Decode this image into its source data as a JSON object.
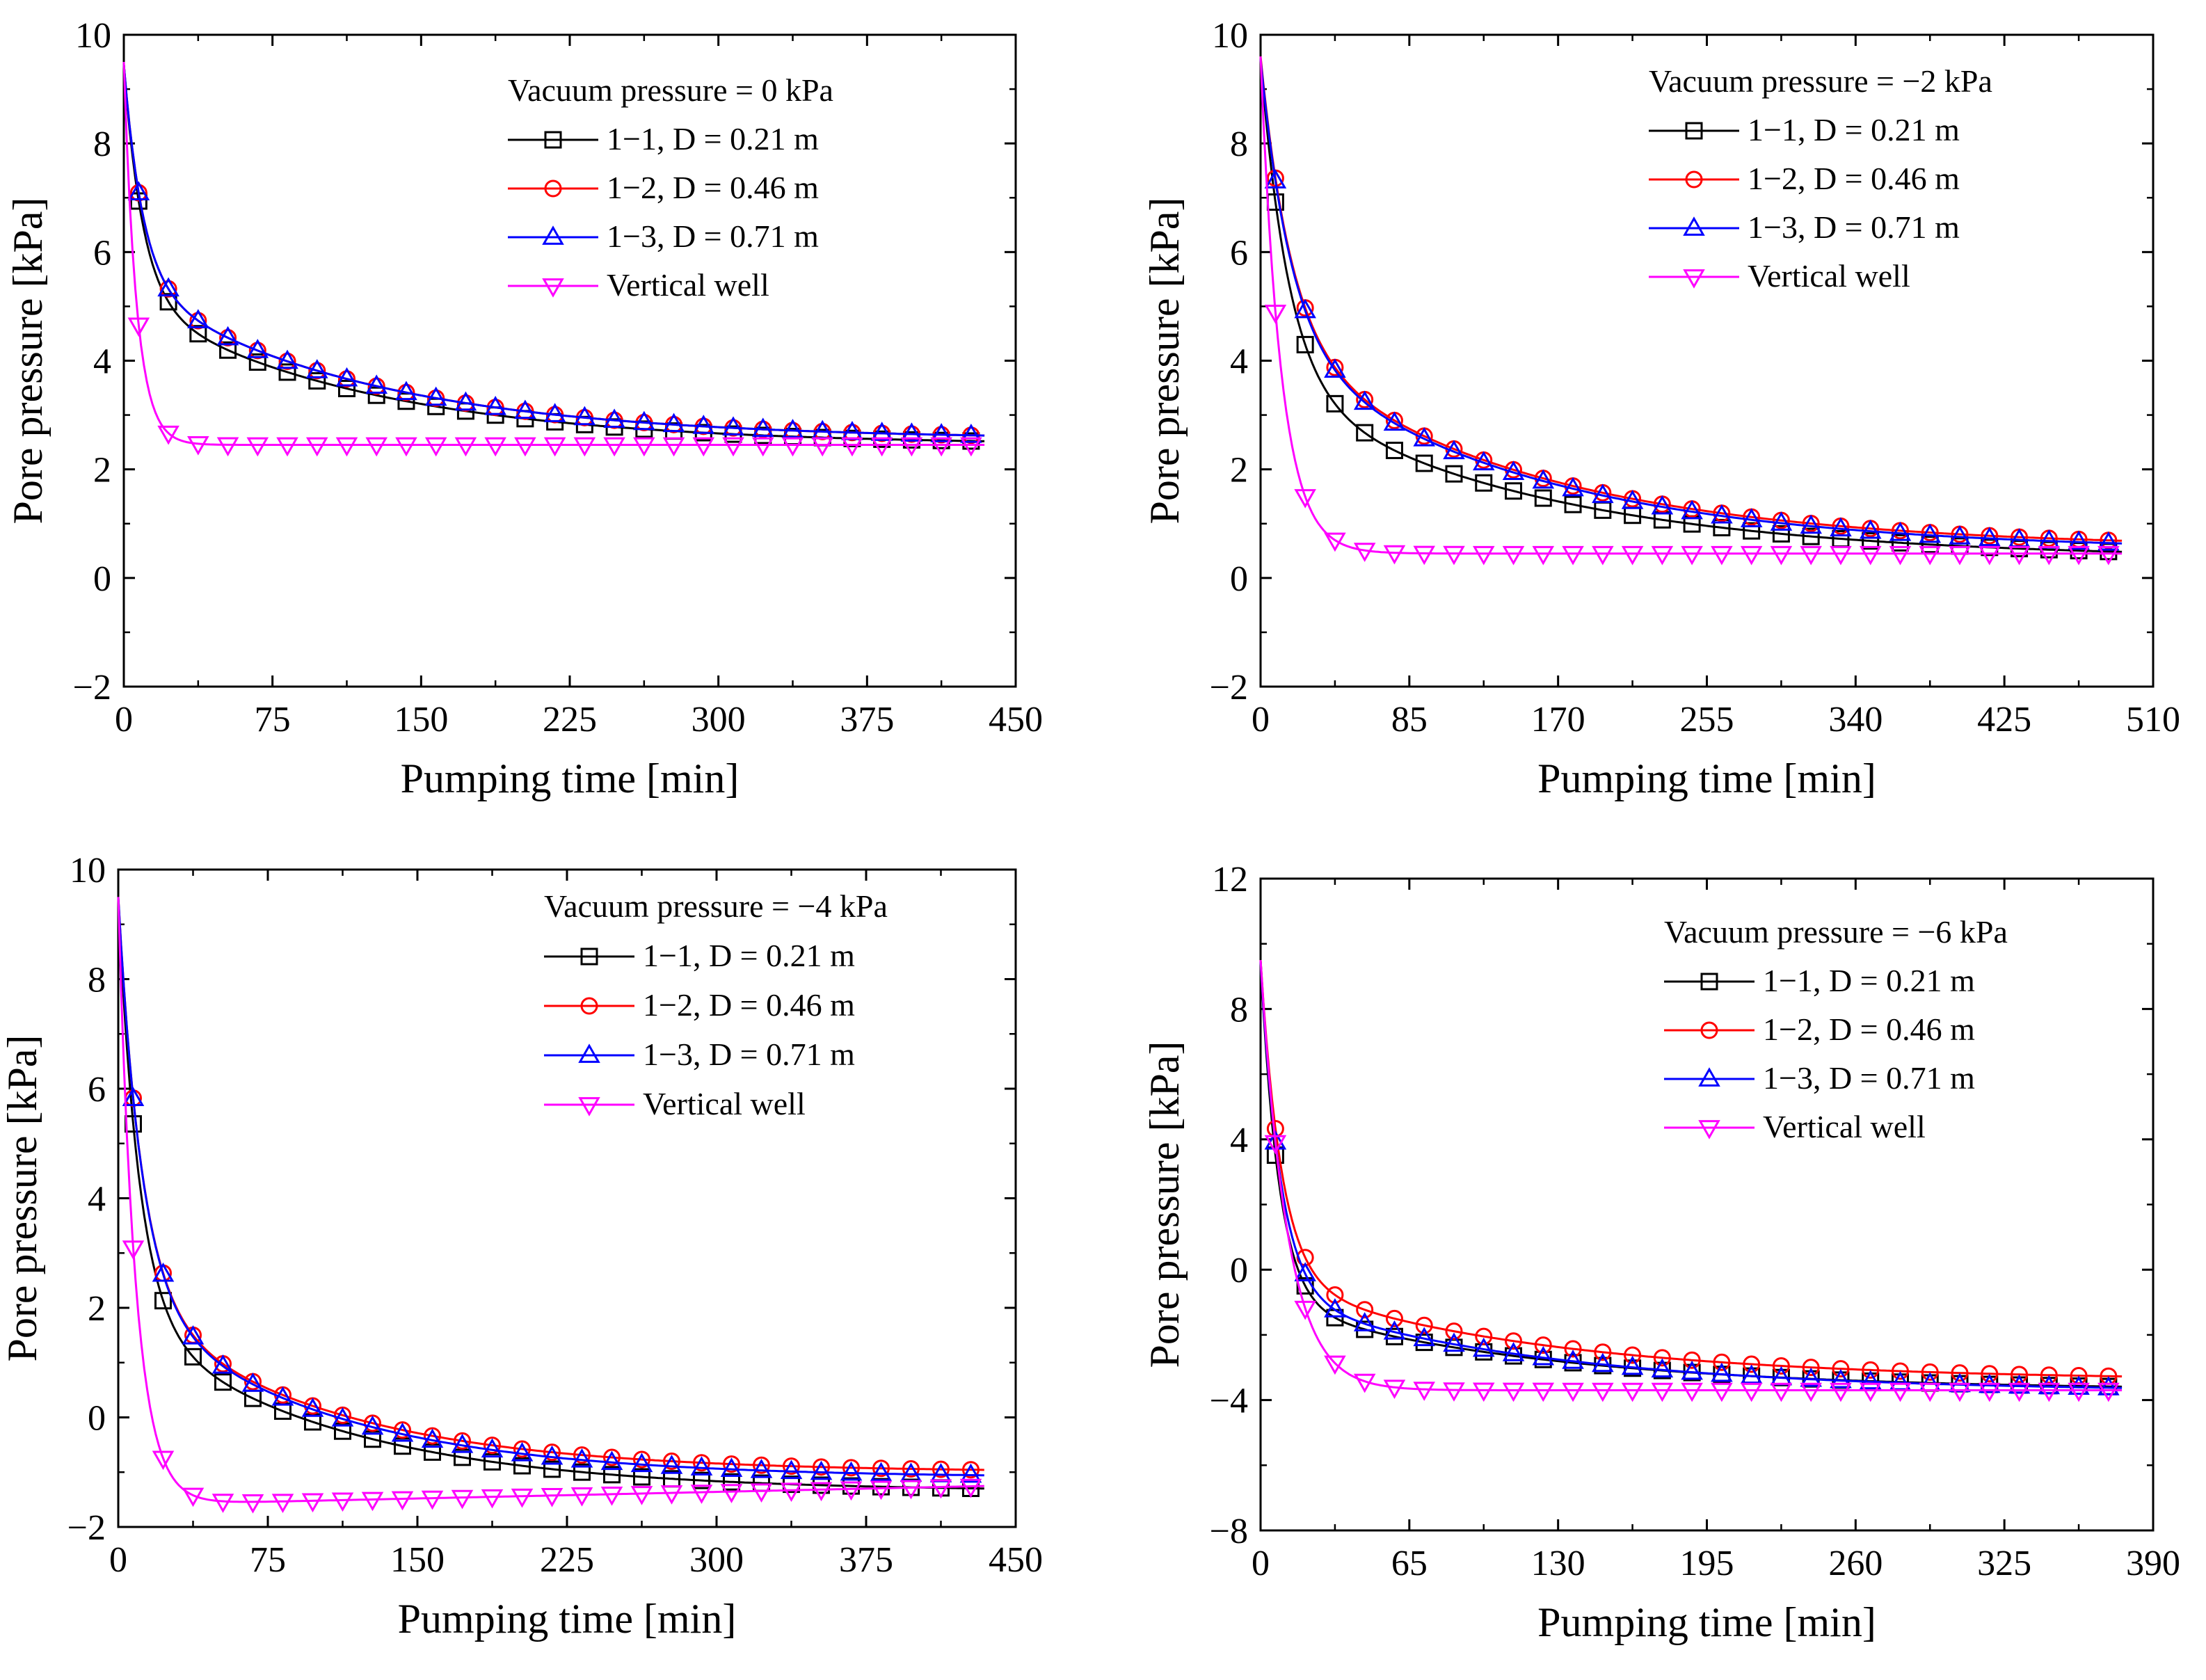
{
  "chart_data": [
    {
      "type": "line",
      "title": "Vacuum pressure = 0 kPa",
      "xlabel": "Pumping time [min]",
      "ylabel": "Pore pressure [kPa]",
      "xlim": [
        0,
        450
      ],
      "ylim": [
        -2,
        10
      ],
      "xticks": [
        0,
        75,
        150,
        225,
        300,
        375,
        450
      ],
      "yticks": [
        -2,
        0,
        2,
        4,
        6,
        8,
        10
      ],
      "xtick_labels": [
        "0",
        "75",
        "150",
        "225",
        "300",
        "375",
        "450"
      ],
      "ytick_labels": [
        "−2",
        "0",
        "2",
        "4",
        "6",
        "8",
        "10"
      ],
      "legend_placement": "top-right",
      "series": [
        {
          "name": "1−1, D = 0.21 m",
          "color": "#000000",
          "marker": "square",
          "model": {
            "a": 2.45,
            "b1": 4.3,
            "k1": 0.105,
            "b2": 2.7,
            "k2": 0.0085
          }
        },
        {
          "name": "1−2, D = 0.46 m",
          "color": "#ff0000",
          "marker": "circle",
          "model": {
            "a": 2.55,
            "b1": 4.0,
            "k1": 0.105,
            "b2": 2.9,
            "k2": 0.0085
          }
        },
        {
          "name": "1−3, D = 0.71 m",
          "color": "#0000ff",
          "marker": "triangle-up",
          "model": {
            "a": 2.55,
            "b1": 4.0,
            "k1": 0.105,
            "b2": 2.9,
            "k2": 0.0085
          }
        },
        {
          "name": "Vertical well",
          "color": "#ff00ff",
          "marker": "triangle-down",
          "model": {
            "a": 2.45,
            "b1": 7.05,
            "k1": 0.155,
            "b2": 0,
            "k2": 0.01
          }
        }
      ]
    },
    {
      "type": "line",
      "title": "Vacuum pressure = −2 kPa",
      "xlabel": "Pumping time [min]",
      "ylabel": "Pore pressure [kPa]",
      "xlim": [
        0,
        510
      ],
      "ylim": [
        -2,
        10
      ],
      "xticks": [
        0,
        85,
        170,
        255,
        340,
        425,
        510
      ],
      "yticks": [
        -2,
        0,
        2,
        4,
        6,
        8,
        10
      ],
      "xtick_labels": [
        "0",
        "85",
        "170",
        "255",
        "340",
        "425",
        "510"
      ],
      "ytick_labels": [
        "−2",
        "0",
        "2",
        "4",
        "6",
        "8",
        "10"
      ],
      "legend_placement": "top-right",
      "series": [
        {
          "name": "1−1, D = 0.21 m",
          "color": "#000000",
          "marker": "square",
          "model": {
            "a": 0.35,
            "b1": 6.0,
            "k1": 0.062,
            "b2": 3.2,
            "k2": 0.0065
          }
        },
        {
          "name": "1−2, D = 0.46 m",
          "color": "#ff0000",
          "marker": "circle",
          "model": {
            "a": 0.55,
            "b1": 5.2,
            "k1": 0.058,
            "b2": 3.85,
            "k2": 0.0068
          }
        },
        {
          "name": "1−3, D = 0.71 m",
          "color": "#0000ff",
          "marker": "triangle-up",
          "model": {
            "a": 0.5,
            "b1": 5.2,
            "k1": 0.058,
            "b2": 3.85,
            "k2": 0.0068
          }
        },
        {
          "name": "Vertical well",
          "color": "#ff00ff",
          "marker": "triangle-down",
          "model": {
            "a": 0.45,
            "b1": 9.15,
            "k1": 0.085,
            "b2": 0,
            "k2": 0.01
          }
        }
      ]
    },
    {
      "type": "line",
      "title": "Vacuum pressure = −4 kPa",
      "xlabel": "Pumping time [min]",
      "ylabel": "Pore pressure [kPa]",
      "xlim": [
        0,
        450
      ],
      "ylim": [
        -2,
        10
      ],
      "xticks": [
        0,
        75,
        150,
        225,
        300,
        375,
        450
      ],
      "yticks": [
        -2,
        0,
        2,
        4,
        6,
        8,
        10
      ],
      "xtick_labels": [
        "0",
        "75",
        "150",
        "225",
        "300",
        "375",
        "450"
      ],
      "ytick_labels": [
        "−2",
        "0",
        "2",
        "4",
        "6",
        "8",
        "10"
      ],
      "legend_placement": "top-right",
      "series": [
        {
          "name": "1−1, D = 0.21 m",
          "color": "#000000",
          "marker": "square",
          "model": {
            "a": -1.35,
            "b1": 7.6,
            "k1": 0.095,
            "b2": 3.2,
            "k2": 0.0095
          }
        },
        {
          "name": "1−2, D = 0.46 m",
          "color": "#ff0000",
          "marker": "circle",
          "model": {
            "a": -1.0,
            "b1": 7.3,
            "k1": 0.085,
            "b2": 3.2,
            "k2": 0.01
          }
        },
        {
          "name": "1−3, D = 0.71 m",
          "color": "#0000ff",
          "marker": "triangle-up",
          "model": {
            "a": -1.1,
            "b1": 7.3,
            "k1": 0.085,
            "b2": 3.3,
            "k2": 0.01
          }
        },
        {
          "name": "Vertical well",
          "color": "#ff00ff",
          "marker": "triangle-down",
          "model": {
            "a": -1.6,
            "b1": 11.1,
            "k1": 0.115,
            "b2": 0,
            "k2": 0.01,
            "drift": 0.0008
          }
        }
      ]
    },
    {
      "type": "line",
      "title": "Vacuum pressure = −6 kPa",
      "xlabel": "Pumping time [min]",
      "ylabel": "Pore pressure [kPa]",
      "xlim": [
        0,
        390
      ],
      "ylim": [
        -8,
        12
      ],
      "xticks": [
        0,
        65,
        130,
        195,
        260,
        325,
        390
      ],
      "yticks": [
        -8,
        -4,
        0,
        4,
        8,
        12
      ],
      "xtick_labels": [
        "0",
        "65",
        "130",
        "195",
        "260",
        "325",
        "390"
      ],
      "ytick_labels": [
        "−8",
        "−4",
        "0",
        "4",
        "8",
        "12"
      ],
      "legend_placement": "top-right",
      "series": [
        {
          "name": "1−1, D = 0.21 m",
          "color": "#000000",
          "marker": "square",
          "model": {
            "a": -3.7,
            "b1": 10.5,
            "k1": 0.125,
            "b2": 2.7,
            "k2": 0.0085
          }
        },
        {
          "name": "1−2, D = 0.46 m",
          "color": "#ff0000",
          "marker": "circle",
          "model": {
            "a": -3.4,
            "b1": 9.8,
            "k1": 0.11,
            "b2": 3.1,
            "k2": 0.0085
          }
        },
        {
          "name": "1−3, D = 0.71 m",
          "color": "#0000ff",
          "marker": "triangle-up",
          "model": {
            "a": -3.75,
            "b1": 10.2,
            "k1": 0.115,
            "b2": 3.0,
            "k2": 0.0085
          }
        },
        {
          "name": "Vertical well",
          "color": "#ff00ff",
          "marker": "triangle-down",
          "model": {
            "a": -3.7,
            "b1": 13.2,
            "k1": 0.085,
            "b2": 0,
            "k2": 0.01
          }
        }
      ]
    }
  ]
}
